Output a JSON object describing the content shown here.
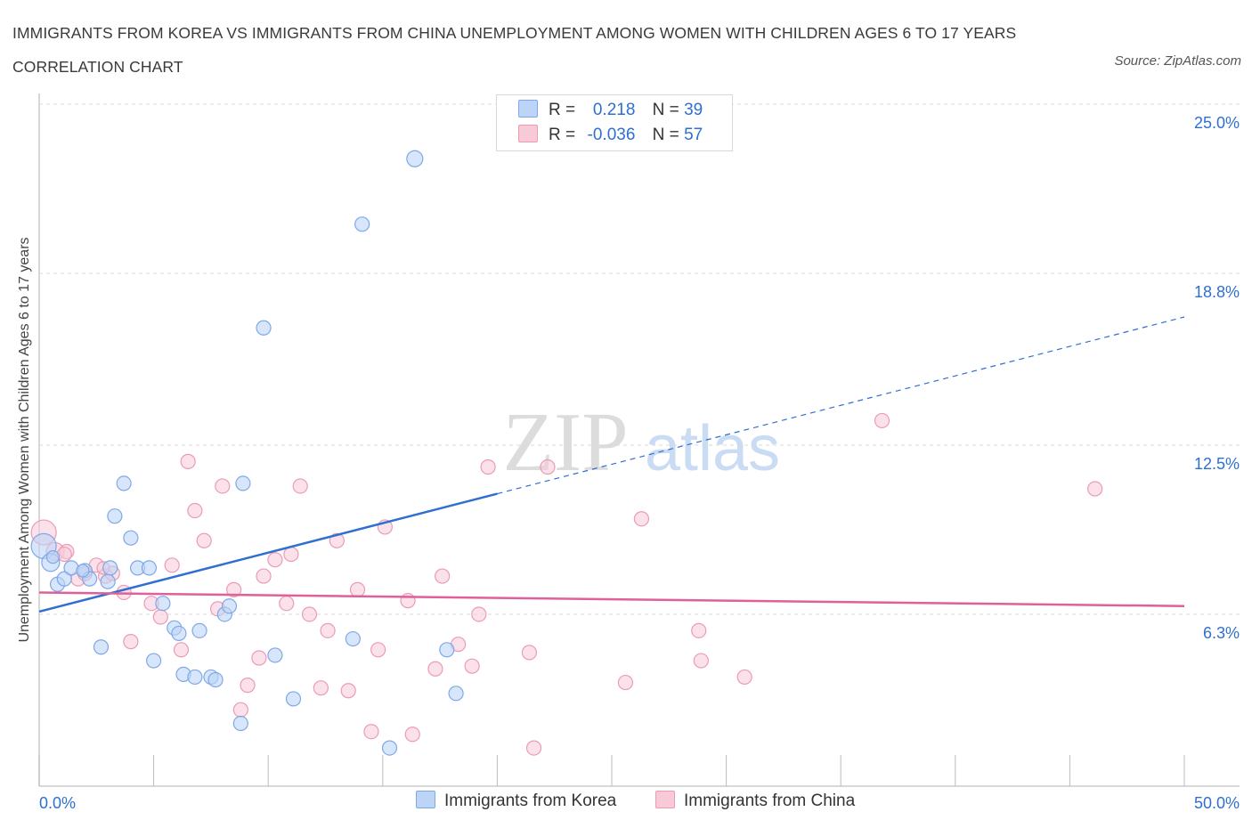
{
  "title": "IMMIGRANTS FROM KOREA VS IMMIGRANTS FROM CHINA UNEMPLOYMENT AMONG WOMEN WITH CHILDREN AGES 6 TO 17 YEARS CORRELATION CHART",
  "source": "Source: ZipAtlas.com",
  "watermark": {
    "zip": "ZIP",
    "atlas": "atlas"
  },
  "legend": {
    "r_label": "R =",
    "n_label": "N =",
    "korea": {
      "r": "0.218",
      "n": "39"
    },
    "china": {
      "r": "-0.036",
      "n": "57"
    }
  },
  "colors": {
    "korea_fill": "#bcd5f7",
    "korea_stroke": "#7fa8e6",
    "korea_line": "#2f6fd0",
    "china_fill": "#f8cad8",
    "china_stroke": "#eb9bb4",
    "china_line": "#e0609a",
    "grid": "#d9d9d9",
    "tick_label": "#2f6fd0"
  },
  "chart_data": {
    "type": "scatter",
    "ylabel": "Unemployment Among Women with Children Ages 6 to 17 years",
    "xlim": [
      0,
      50
    ],
    "ylim": [
      0,
      25
    ],
    "x_tick_labels": [
      "0.0%",
      "50.0%"
    ],
    "y_ticks": [
      {
        "value": 6.3,
        "label": "6.3%"
      },
      {
        "value": 12.5,
        "label": "12.5%"
      },
      {
        "value": 18.8,
        "label": "18.8%"
      },
      {
        "value": 25.0,
        "label": "25.0%"
      }
    ],
    "grid": true,
    "series": [
      {
        "name": "Immigrants from Korea",
        "trend": {
          "x0": 0,
          "y0": 6.4,
          "x_solid_end": 20,
          "x1": 50,
          "y1": 17.2
        },
        "points": [
          [
            0.2,
            8.8,
            14
          ],
          [
            0.5,
            8.2,
            10
          ],
          [
            0.8,
            7.4,
            8
          ],
          [
            1.1,
            7.6,
            8
          ],
          [
            1.4,
            8.0,
            8
          ],
          [
            2.0,
            7.9,
            8
          ],
          [
            2.2,
            7.6,
            8
          ],
          [
            3.0,
            7.5,
            8
          ],
          [
            2.7,
            5.1,
            8
          ],
          [
            3.3,
            9.9,
            8
          ],
          [
            3.7,
            11.1,
            8
          ],
          [
            4.0,
            9.1,
            8
          ],
          [
            4.3,
            8.0,
            8
          ],
          [
            4.8,
            8.0,
            8
          ],
          [
            5.0,
            4.6,
            8
          ],
          [
            5.4,
            6.7,
            8
          ],
          [
            5.9,
            5.8,
            8
          ],
          [
            6.1,
            5.6,
            8
          ],
          [
            6.3,
            4.1,
            8
          ],
          [
            6.8,
            4.0,
            8
          ],
          [
            7.0,
            5.7,
            8
          ],
          [
            7.5,
            4.0,
            8
          ],
          [
            7.7,
            3.9,
            8
          ],
          [
            8.1,
            6.3,
            8
          ],
          [
            8.3,
            6.6,
            8
          ],
          [
            8.8,
            2.3,
            8
          ],
          [
            8.9,
            11.1,
            8
          ],
          [
            9.8,
            16.8,
            8
          ],
          [
            10.3,
            4.8,
            8
          ],
          [
            11.1,
            3.2,
            8
          ],
          [
            13.7,
            5.4,
            8
          ],
          [
            14.1,
            20.6,
            8
          ],
          [
            15.3,
            1.4,
            8
          ],
          [
            16.4,
            23.0,
            9
          ],
          [
            17.8,
            5.0,
            8
          ],
          [
            18.2,
            3.4,
            8
          ],
          [
            3.1,
            8.0,
            8
          ],
          [
            1.9,
            7.9,
            7
          ],
          [
            0.6,
            8.4,
            7
          ]
        ]
      },
      {
        "name": "Immigrants from China",
        "trend": {
          "x0": 0,
          "y0": 7.1,
          "x1": 50,
          "y1": 6.6
        },
        "points": [
          [
            0.2,
            9.3,
            14
          ],
          [
            0.7,
            8.6,
            10
          ],
          [
            1.2,
            8.6,
            8
          ],
          [
            1.7,
            7.6,
            8
          ],
          [
            2.0,
            7.8,
            8
          ],
          [
            2.5,
            8.1,
            8
          ],
          [
            2.9,
            7.7,
            8
          ],
          [
            3.2,
            7.8,
            8
          ],
          [
            3.7,
            7.1,
            8
          ],
          [
            4.0,
            5.3,
            8
          ],
          [
            4.9,
            6.7,
            8
          ],
          [
            5.3,
            6.2,
            8
          ],
          [
            5.8,
            8.1,
            8
          ],
          [
            6.2,
            5.0,
            8
          ],
          [
            6.5,
            11.9,
            8
          ],
          [
            6.8,
            10.1,
            8
          ],
          [
            7.2,
            9.0,
            8
          ],
          [
            7.8,
            6.5,
            8
          ],
          [
            8.0,
            11.0,
            8
          ],
          [
            8.5,
            7.2,
            8
          ],
          [
            8.8,
            2.8,
            8
          ],
          [
            9.1,
            3.7,
            8
          ],
          [
            9.6,
            4.7,
            8
          ],
          [
            9.8,
            7.7,
            8
          ],
          [
            10.3,
            8.3,
            8
          ],
          [
            10.8,
            6.7,
            8
          ],
          [
            11.0,
            8.5,
            8
          ],
          [
            11.4,
            11.0,
            8
          ],
          [
            11.8,
            6.3,
            8
          ],
          [
            12.3,
            3.6,
            8
          ],
          [
            12.6,
            5.7,
            8
          ],
          [
            13.0,
            9.0,
            8
          ],
          [
            13.5,
            3.5,
            8
          ],
          [
            13.9,
            7.2,
            8
          ],
          [
            14.5,
            2.0,
            8
          ],
          [
            14.8,
            5.0,
            8
          ],
          [
            15.1,
            9.5,
            8
          ],
          [
            16.1,
            6.8,
            8
          ],
          [
            16.3,
            1.9,
            8
          ],
          [
            17.3,
            4.3,
            8
          ],
          [
            17.6,
            7.7,
            8
          ],
          [
            18.3,
            5.2,
            8
          ],
          [
            18.9,
            4.4,
            8
          ],
          [
            19.2,
            6.3,
            8
          ],
          [
            19.6,
            11.7,
            8
          ],
          [
            21.4,
            4.9,
            8
          ],
          [
            21.6,
            1.4,
            8
          ],
          [
            22.2,
            11.7,
            8
          ],
          [
            25.6,
            3.8,
            8
          ],
          [
            26.3,
            9.8,
            8
          ],
          [
            28.8,
            5.7,
            8
          ],
          [
            28.9,
            4.6,
            8
          ],
          [
            30.8,
            4.0,
            8
          ],
          [
            36.8,
            13.4,
            8
          ],
          [
            46.1,
            10.9,
            8
          ],
          [
            1.1,
            8.5,
            8
          ],
          [
            2.8,
            8.0,
            7
          ]
        ]
      }
    ]
  },
  "bottom_legend": {
    "korea": "Immigrants from Korea",
    "china": "Immigrants from China"
  }
}
